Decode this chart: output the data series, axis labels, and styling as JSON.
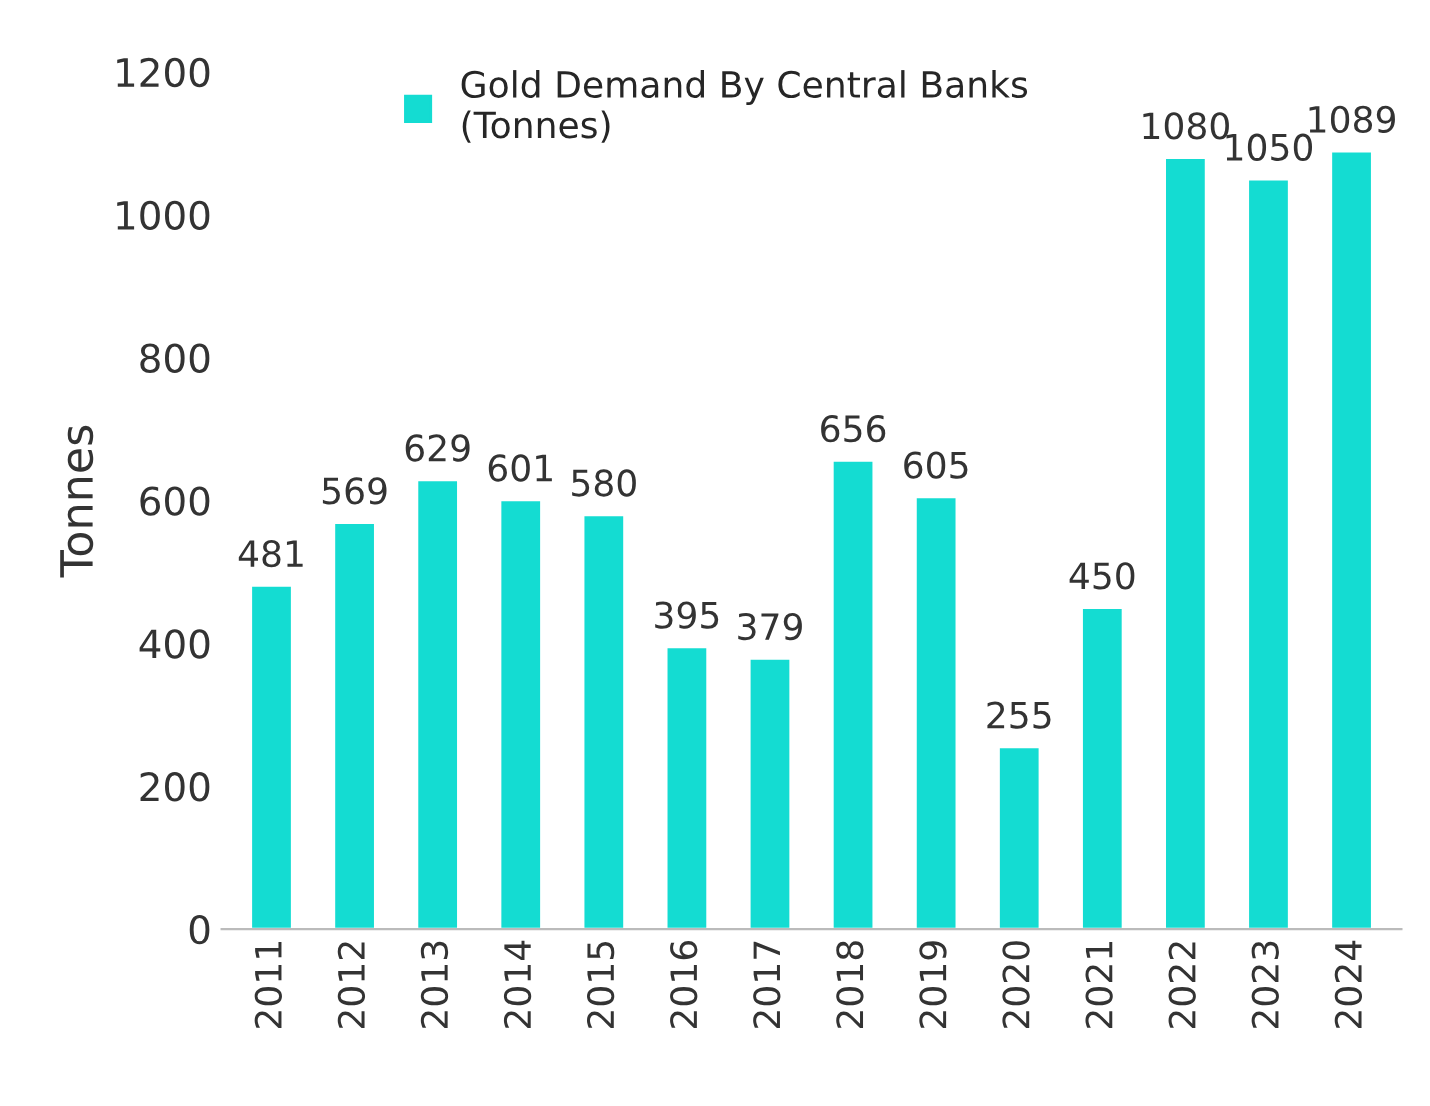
{
  "chart_data": {
    "type": "bar",
    "ylabel": "Tonnes",
    "categories": [
      "2011",
      "2012",
      "2013",
      "2014",
      "2015",
      "2016",
      "2017",
      "2018",
      "2019",
      "2020",
      "2021",
      "2022",
      "2023",
      "2024"
    ],
    "series": [
      {
        "name": "Gold Demand By Central Banks\n(Tonnes)",
        "color": "#14dcd2",
        "values": [
          481,
          569,
          629,
          601,
          580,
          395,
          379,
          656,
          605,
          255,
          450,
          1080,
          1050,
          1089
        ]
      }
    ],
    "ylim": [
      0,
      1200
    ],
    "yticks": [
      0,
      200,
      400,
      600,
      800,
      1000,
      1200
    ],
    "data_labels": true,
    "legend": "top",
    "grid": false
  }
}
